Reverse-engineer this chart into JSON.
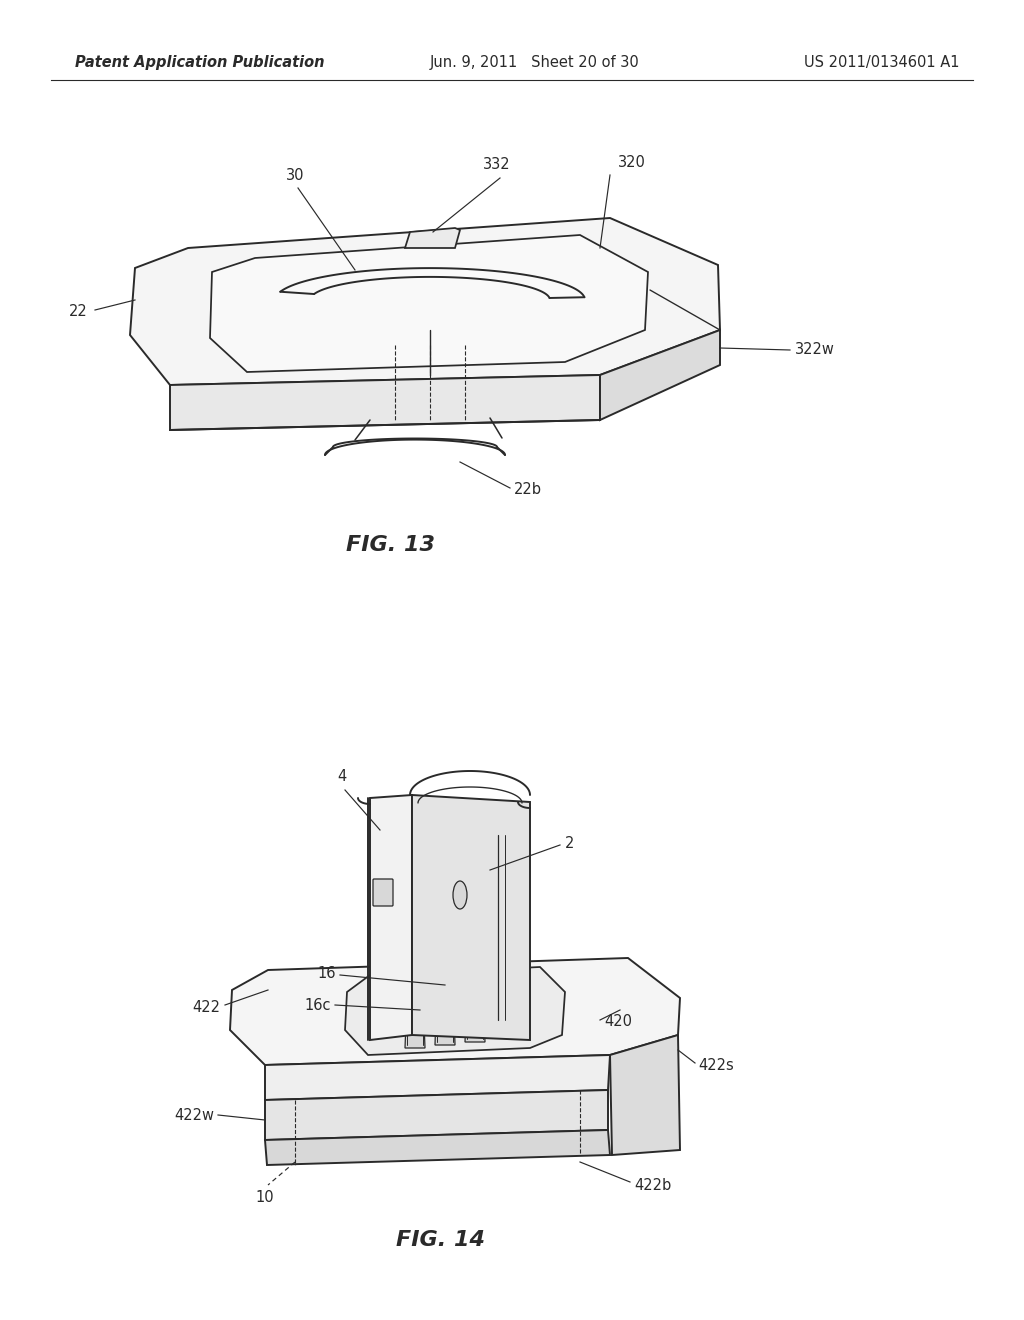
{
  "background_color": "#ffffff",
  "header_left": "Patent Application Publication",
  "header_center": "Jun. 9, 2011   Sheet 20 of 30",
  "header_right": "US 2011/0134601 A1",
  "line_color": "#2a2a2a",
  "line_width": 1.4,
  "thin_lw": 0.8,
  "label_fontsize": 10.5,
  "caption_fontsize": 16
}
